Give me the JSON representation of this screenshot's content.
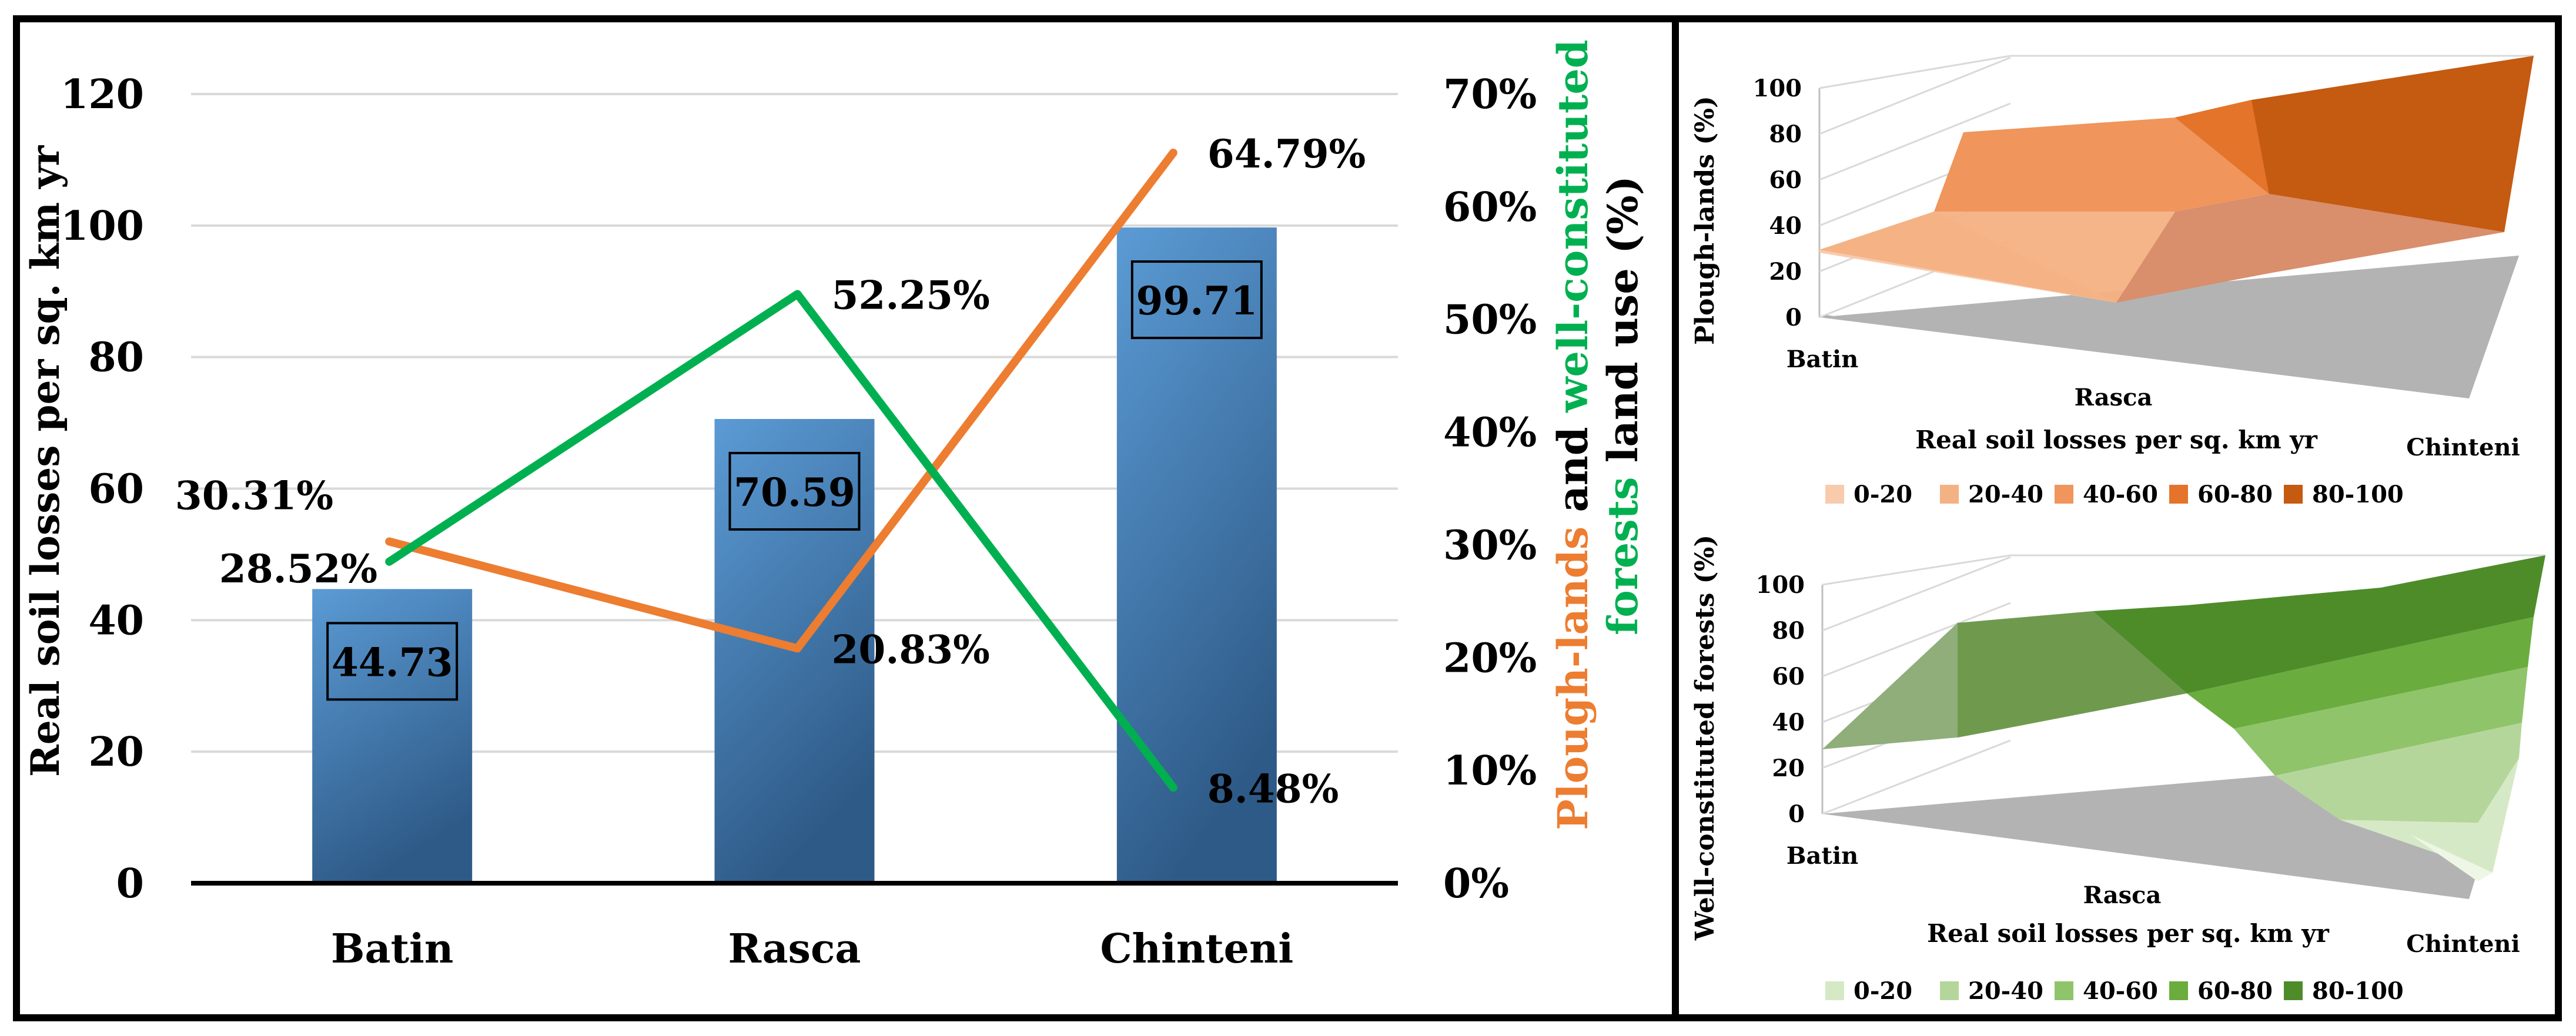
{
  "colors": {
    "bar_top": "#5b9bd5",
    "bar_bottom": "#2e5a87",
    "plough": "#ed7d31",
    "forest": "#00b050",
    "grid": "#d9d9d9",
    "floor": "#a6a6a6"
  },
  "chart_data": [
    {
      "type": "bar",
      "categories": [
        "Batin",
        "Rasca",
        "Chinteni"
      ],
      "values": [
        44.73,
        70.59,
        99.71
      ],
      "value_labels": [
        "44.73",
        "70.59",
        "99.71"
      ],
      "ylabel": "Real soil losses per sq. km yr",
      "ylim": [
        0,
        120
      ],
      "yticks": [
        "0",
        "20",
        "40",
        "60",
        "80",
        "100",
        "120"
      ],
      "y2label_parts": [
        "Plough-lands",
        " and ",
        "well-constituted",
        "forests",
        " land use (%)"
      ],
      "y2lim": [
        0,
        70
      ],
      "y2ticks": [
        "0%",
        "10%",
        "20%",
        "30%",
        "40%",
        "50%",
        "60%",
        "70%"
      ],
      "grid": true,
      "series": [
        {
          "name": "Plough-lands",
          "axis": "right",
          "values": [
            30.31,
            20.83,
            64.79
          ],
          "labels": [
            "30.31%",
            "20.83%",
            "64.79%"
          ]
        },
        {
          "name": "well-constituted forests",
          "axis": "right",
          "values": [
            28.52,
            52.25,
            8.48
          ],
          "labels": [
            "28.52%",
            "52.25%",
            "8.48%"
          ]
        }
      ]
    },
    {
      "type": "surface",
      "categories": [
        "Batin",
        "Rasca",
        "Chinteni"
      ],
      "xlabel": "Real soil losses per sq. km yr",
      "zlabel": "Plough-lands (%)",
      "zticks": [
        "0",
        "20",
        "40",
        "60",
        "80",
        "100"
      ],
      "legend": [
        "0-20",
        "20-40",
        "40-60",
        "60-80",
        "80-100"
      ],
      "legend_colors": [
        "#f8cbad",
        "#f4b183",
        "#f0955b",
        "#e4742a",
        "#c55a11"
      ]
    },
    {
      "type": "surface",
      "categories": [
        "Batin",
        "Rasca",
        "Chinteni"
      ],
      "xlabel": "Real soil losses per sq. km yr",
      "zlabel": "Well-constituted forests (%)",
      "zticks": [
        "0",
        "20",
        "40",
        "60",
        "80",
        "100"
      ],
      "legend": [
        "0-20",
        "20-40",
        "40-60",
        "60-80",
        "80-100"
      ],
      "legend_colors": [
        "#d6e9c6",
        "#b5d69a",
        "#8fc46a",
        "#6aac3e",
        "#4e8c2a"
      ]
    }
  ]
}
